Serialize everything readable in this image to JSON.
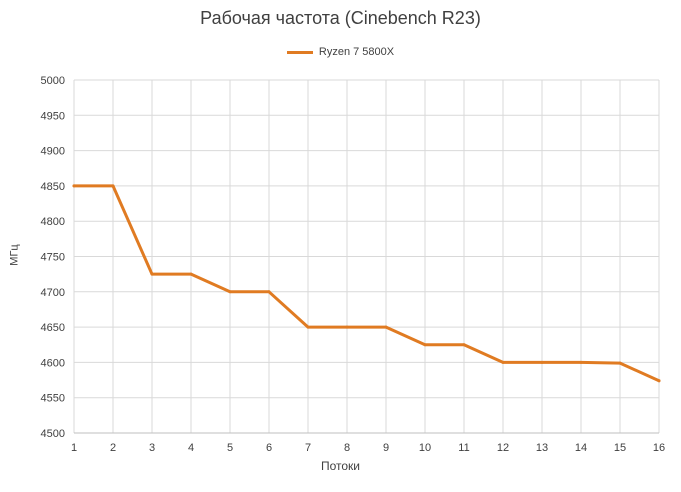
{
  "chart_data": {
    "type": "line",
    "title": "Рабочая частота (Cinebench R23)",
    "xlabel": "Потоки",
    "ylabel": "МГц",
    "x": [
      1,
      2,
      3,
      4,
      5,
      6,
      7,
      8,
      9,
      10,
      11,
      12,
      13,
      14,
      15,
      16
    ],
    "series": [
      {
        "name": "Ryzen 7 5800X",
        "color": "#E07B22",
        "values": [
          4850,
          4850,
          4725,
          4725,
          4700,
          4700,
          4650,
          4650,
          4650,
          4625,
          4625,
          4600,
          4600,
          4600,
          4599,
          4574
        ]
      }
    ],
    "xlim": [
      1,
      16
    ],
    "ylim": [
      4500,
      5000
    ],
    "yticks": [
      4500,
      4550,
      4600,
      4650,
      4700,
      4750,
      4800,
      4850,
      4900,
      4950,
      5000
    ],
    "grid": true,
    "legend_position": "top-center"
  }
}
